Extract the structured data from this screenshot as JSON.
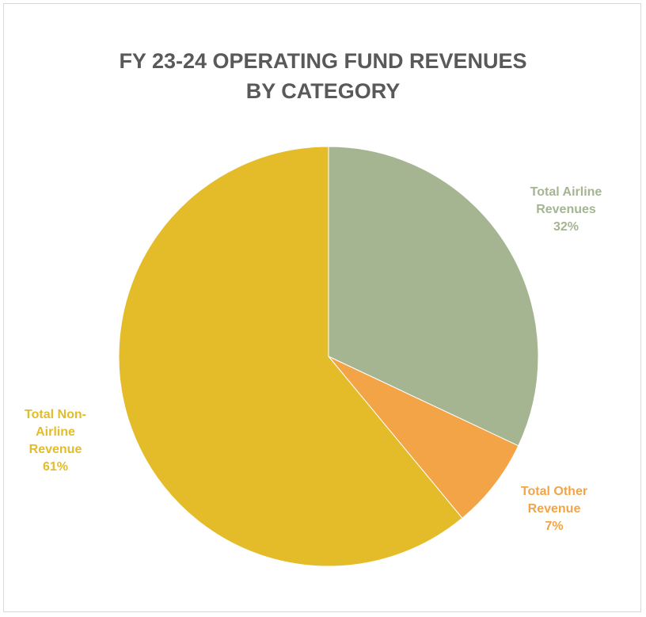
{
  "chart_data": {
    "type": "pie",
    "title": [
      "FY 23-24 OPERATING FUND REVENUES",
      "BY CATEGORY"
    ],
    "categories": [
      "Total Airline Revenues",
      "Total Other Revenue",
      "Total Non-Airline Revenue"
    ],
    "values": [
      32,
      7,
      61
    ],
    "value_labels": [
      "32%",
      "7%",
      "61%"
    ],
    "colors": [
      "#a5b592",
      "#f3a447",
      "#e4bc29"
    ]
  }
}
